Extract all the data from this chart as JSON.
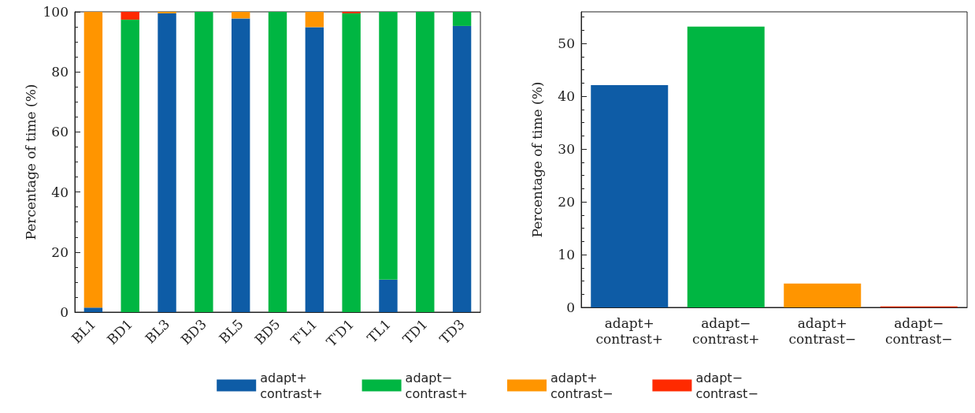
{
  "chart_data": [
    {
      "type": "bar",
      "stacked": true,
      "ylabel": "Percentage of time (%)",
      "categories": [
        "BL1",
        "BD1",
        "BL3",
        "BD3",
        "BL5",
        "BD5",
        "T'L1",
        "T'D1",
        "TL1",
        "TD1",
        "TD3"
      ],
      "ylim": [
        0,
        100
      ],
      "yticks": [
        0,
        20,
        40,
        60,
        80,
        100
      ],
      "legend": "bottom",
      "series": [
        {
          "name": "adapt+\ncontrast+",
          "color": "#0e5ca6",
          "values": [
            1.5,
            0,
            99.5,
            0,
            97.8,
            0,
            94.9,
            0,
            10.8,
            0,
            95.3
          ]
        },
        {
          "name": "adapt−\ncontrast+",
          "color": "#00b642",
          "values": [
            0,
            97.4,
            0,
            100,
            0,
            100,
            0,
            99.5,
            89.2,
            100,
            4.7
          ]
        },
        {
          "name": "adapt+\ncontrast−",
          "color": "#ff9500",
          "values": [
            98.5,
            0,
            0.5,
            0,
            2.2,
            0,
            5.1,
            0,
            0,
            0,
            0
          ]
        },
        {
          "name": "adapt−\ncontrast−",
          "color": "#ff2a00",
          "values": [
            0,
            2.6,
            0,
            0,
            0,
            0,
            0,
            0.5,
            0,
            0,
            0
          ]
        }
      ]
    },
    {
      "type": "bar",
      "ylabel": "Percentage of time (%)",
      "categories": [
        "adapt+\ncontrast+",
        "adapt−\ncontrast+",
        "adapt+\ncontrast−",
        "adapt−\ncontrast−"
      ],
      "values": [
        42.1,
        53.2,
        4.5,
        0.2
      ],
      "colors": [
        "#0e5ca6",
        "#00b642",
        "#ff9500",
        "#ff2a00"
      ],
      "ylim": [
        0,
        56
      ],
      "yticks": [
        0,
        10,
        20,
        30,
        40,
        50
      ]
    }
  ]
}
